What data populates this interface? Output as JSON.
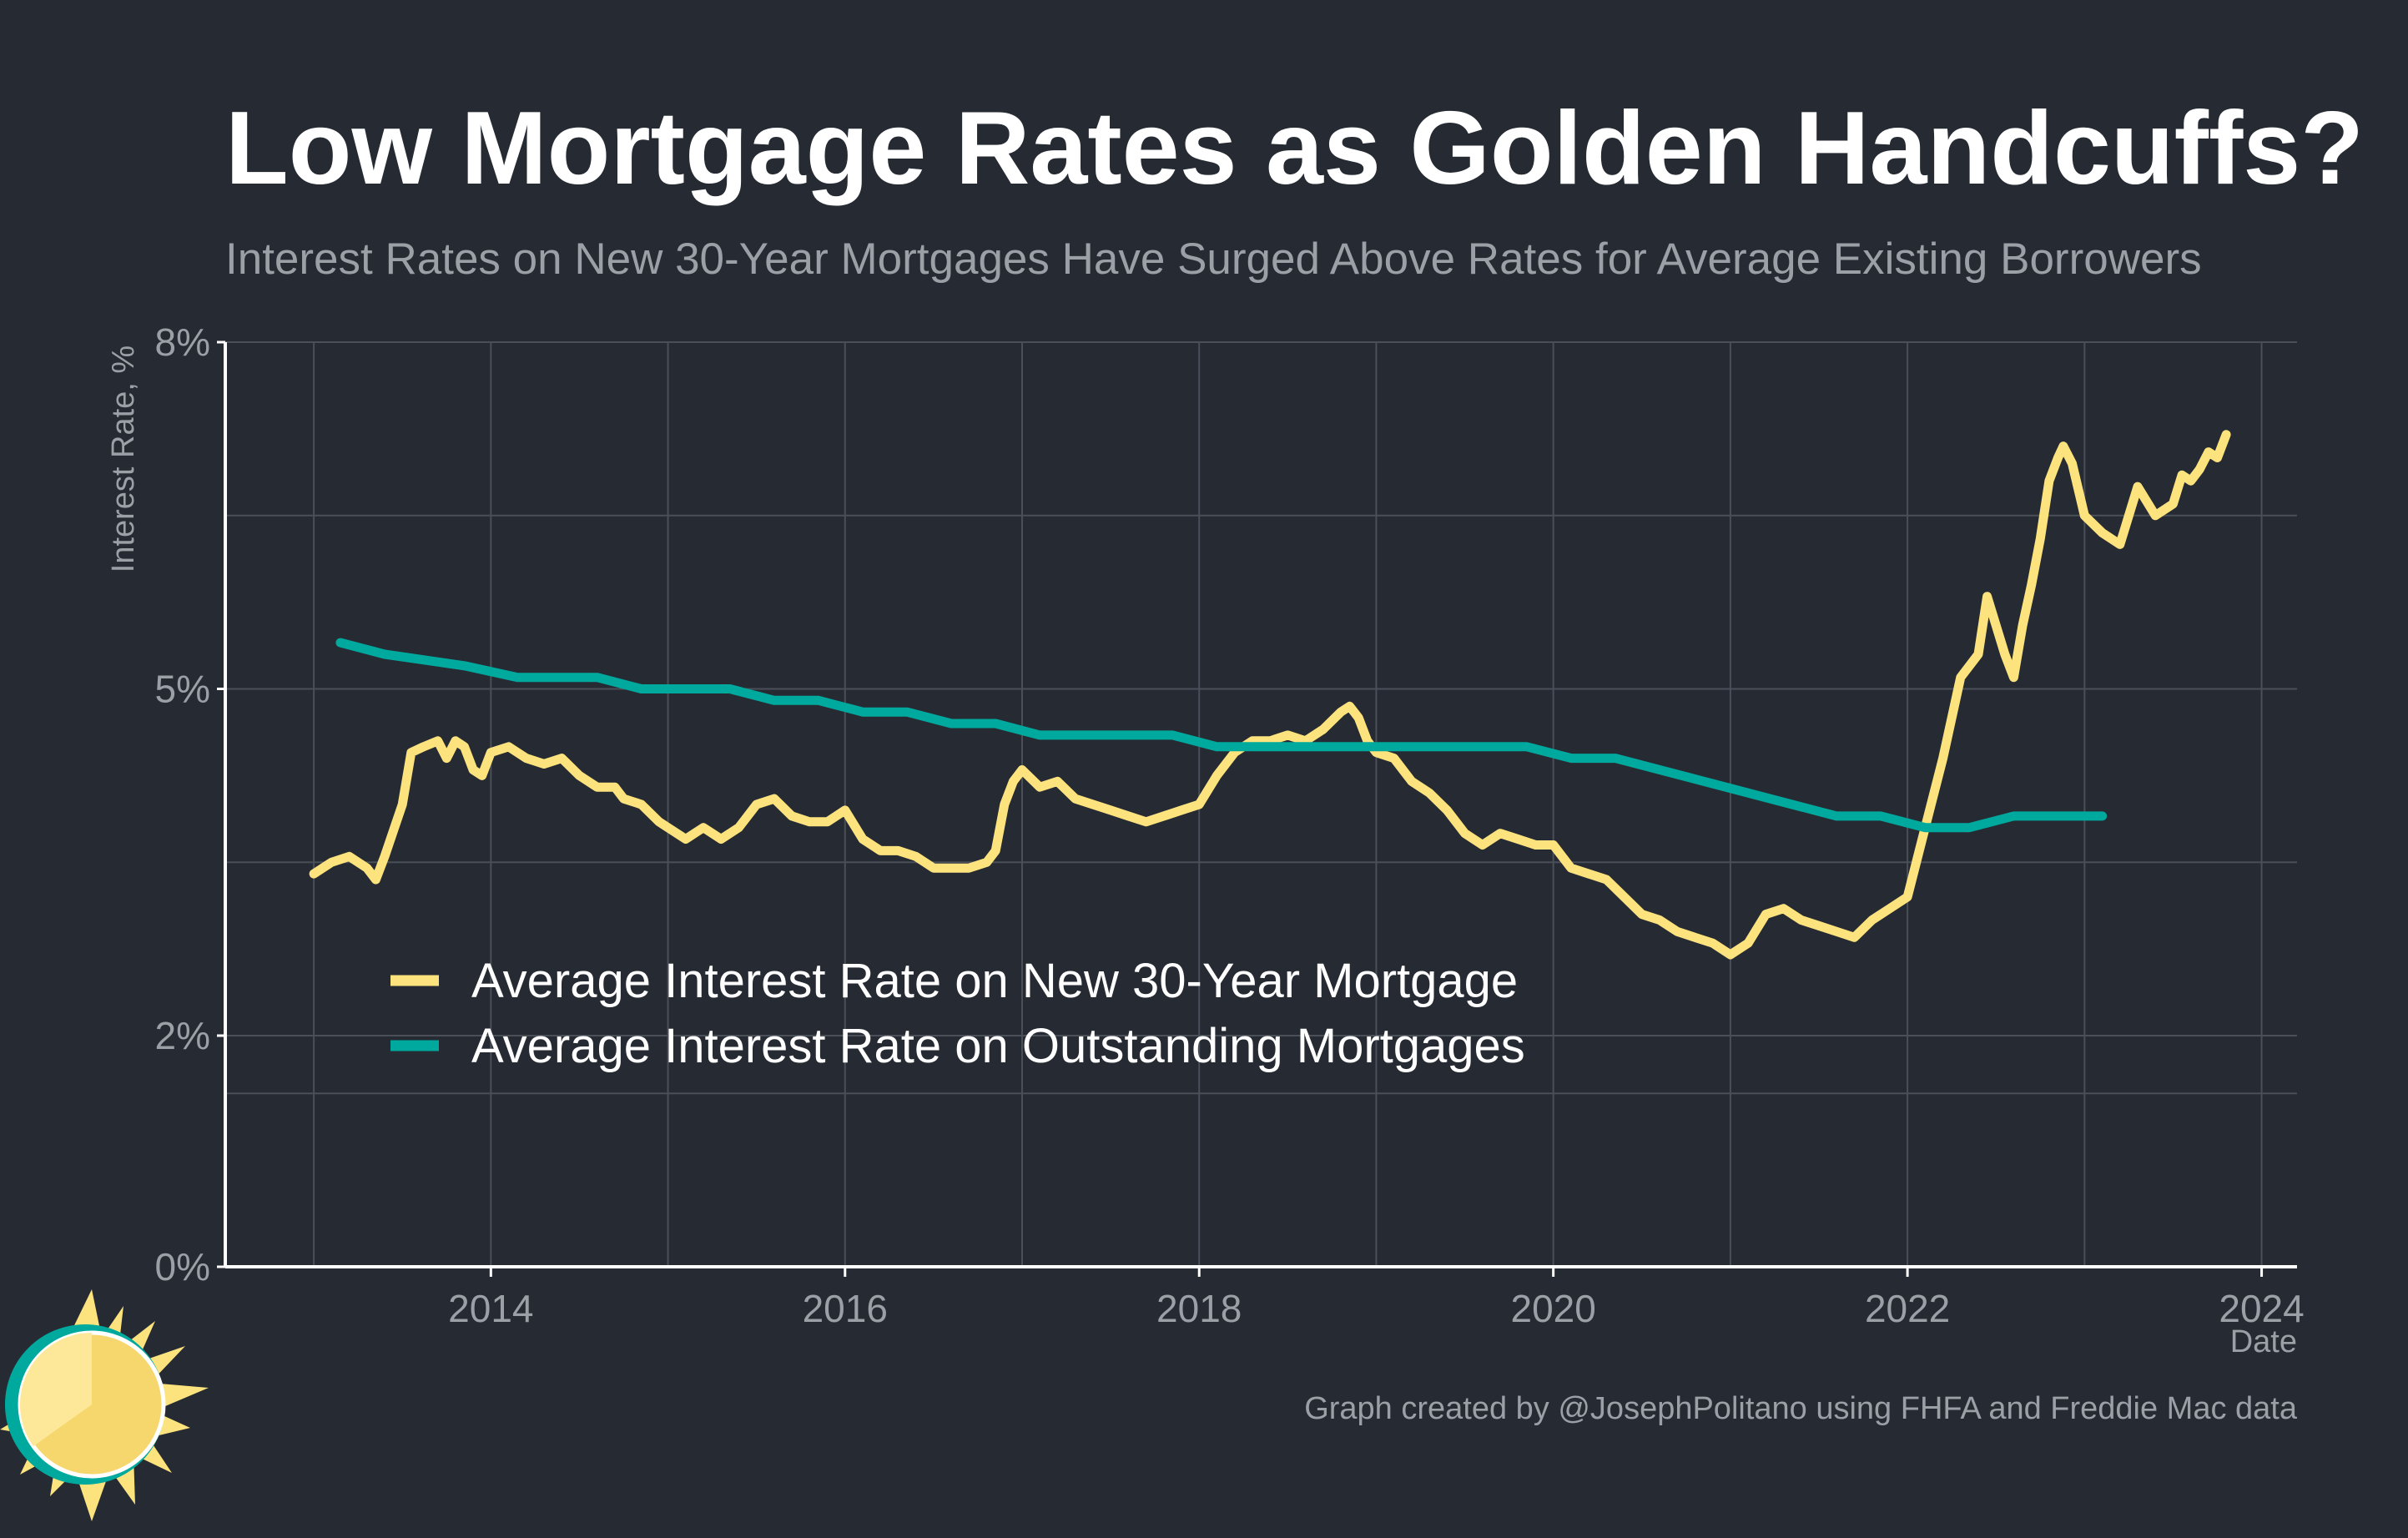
{
  "colors": {
    "background": "#252a33",
    "new_mortgage": "#fce37d",
    "outstanding": "#00a99d",
    "grid": "#4a4f58",
    "axis": "#ffffff",
    "title": "#ffffff",
    "subtitle": "#9aa0a6",
    "tick": "#9aa0a6"
  },
  "chart_data": {
    "type": "line",
    "title": "Low Mortgage Rates as Golden Handcuffs?",
    "subtitle": "Interest Rates on New 30-Year Mortgages Have Surged Above Rates for Average Existing Borrowers",
    "xlabel": "Date",
    "ylabel": "Interest Rate, %",
    "xlim": [
      2012.5,
      2024.2
    ],
    "ylim": [
      0,
      8
    ],
    "x_ticks": [
      2014,
      2016,
      2018,
      2020,
      2022,
      2024
    ],
    "x_tick_labels": [
      "2014",
      "2016",
      "2018",
      "2020",
      "2022",
      "2024"
    ],
    "y_ticks": [
      0,
      2,
      5,
      8
    ],
    "y_tick_labels": [
      "0%",
      "2%",
      "5%",
      "8%"
    ],
    "grid": true,
    "legend_position": "lower-left",
    "series": [
      {
        "name": "Average Interest Rate on New 30-Year Mortgage",
        "color_key": "new_mortgage",
        "points": [
          [
            2013.0,
            3.4
          ],
          [
            2013.1,
            3.5
          ],
          [
            2013.2,
            3.55
          ],
          [
            2013.3,
            3.45
          ],
          [
            2013.35,
            3.35
          ],
          [
            2013.4,
            3.55
          ],
          [
            2013.5,
            4.0
          ],
          [
            2013.55,
            4.45
          ],
          [
            2013.62,
            4.5
          ],
          [
            2013.7,
            4.55
          ],
          [
            2013.75,
            4.4
          ],
          [
            2013.8,
            4.55
          ],
          [
            2013.85,
            4.5
          ],
          [
            2013.9,
            4.3
          ],
          [
            2013.95,
            4.25
          ],
          [
            2014.0,
            4.45
          ],
          [
            2014.1,
            4.5
          ],
          [
            2014.2,
            4.4
          ],
          [
            2014.3,
            4.35
          ],
          [
            2014.4,
            4.4
          ],
          [
            2014.5,
            4.25
          ],
          [
            2014.6,
            4.15
          ],
          [
            2014.7,
            4.15
          ],
          [
            2014.75,
            4.05
          ],
          [
            2014.85,
            4.0
          ],
          [
            2014.95,
            3.85
          ],
          [
            2015.0,
            3.8
          ],
          [
            2015.1,
            3.7
          ],
          [
            2015.2,
            3.8
          ],
          [
            2015.3,
            3.7
          ],
          [
            2015.4,
            3.8
          ],
          [
            2015.5,
            4.0
          ],
          [
            2015.6,
            4.05
          ],
          [
            2015.7,
            3.9
          ],
          [
            2015.8,
            3.85
          ],
          [
            2015.9,
            3.85
          ],
          [
            2016.0,
            3.95
          ],
          [
            2016.1,
            3.7
          ],
          [
            2016.2,
            3.6
          ],
          [
            2016.3,
            3.6
          ],
          [
            2016.4,
            3.55
          ],
          [
            2016.5,
            3.45
          ],
          [
            2016.6,
            3.45
          ],
          [
            2016.7,
            3.45
          ],
          [
            2016.8,
            3.5
          ],
          [
            2016.85,
            3.6
          ],
          [
            2016.9,
            4.0
          ],
          [
            2016.95,
            4.2
          ],
          [
            2017.0,
            4.3
          ],
          [
            2017.1,
            4.15
          ],
          [
            2017.2,
            4.2
          ],
          [
            2017.3,
            4.05
          ],
          [
            2017.4,
            4.0
          ],
          [
            2017.5,
            3.95
          ],
          [
            2017.6,
            3.9
          ],
          [
            2017.7,
            3.85
          ],
          [
            2017.8,
            3.9
          ],
          [
            2017.9,
            3.95
          ],
          [
            2018.0,
            4.0
          ],
          [
            2018.1,
            4.25
          ],
          [
            2018.2,
            4.45
          ],
          [
            2018.3,
            4.55
          ],
          [
            2018.4,
            4.55
          ],
          [
            2018.5,
            4.6
          ],
          [
            2018.6,
            4.55
          ],
          [
            2018.7,
            4.65
          ],
          [
            2018.8,
            4.8
          ],
          [
            2018.85,
            4.85
          ],
          [
            2018.9,
            4.75
          ],
          [
            2018.95,
            4.55
          ],
          [
            2019.0,
            4.45
          ],
          [
            2019.1,
            4.4
          ],
          [
            2019.2,
            4.2
          ],
          [
            2019.3,
            4.1
          ],
          [
            2019.4,
            3.95
          ],
          [
            2019.5,
            3.75
          ],
          [
            2019.6,
            3.65
          ],
          [
            2019.7,
            3.75
          ],
          [
            2019.8,
            3.7
          ],
          [
            2019.9,
            3.65
          ],
          [
            2020.0,
            3.65
          ],
          [
            2020.1,
            3.45
          ],
          [
            2020.2,
            3.4
          ],
          [
            2020.3,
            3.35
          ],
          [
            2020.4,
            3.2
          ],
          [
            2020.5,
            3.05
          ],
          [
            2020.6,
            3.0
          ],
          [
            2020.7,
            2.9
          ],
          [
            2020.8,
            2.85
          ],
          [
            2020.9,
            2.8
          ],
          [
            2021.0,
            2.7
          ],
          [
            2021.1,
            2.8
          ],
          [
            2021.2,
            3.05
          ],
          [
            2021.3,
            3.1
          ],
          [
            2021.4,
            3.0
          ],
          [
            2021.5,
            2.95
          ],
          [
            2021.6,
            2.9
          ],
          [
            2021.7,
            2.85
          ],
          [
            2021.8,
            3.0
          ],
          [
            2021.9,
            3.1
          ],
          [
            2022.0,
            3.2
          ],
          [
            2022.1,
            3.8
          ],
          [
            2022.2,
            4.4
          ],
          [
            2022.3,
            5.1
          ],
          [
            2022.4,
            5.3
          ],
          [
            2022.45,
            5.8
          ],
          [
            2022.5,
            5.55
          ],
          [
            2022.55,
            5.3
          ],
          [
            2022.6,
            5.1
          ],
          [
            2022.65,
            5.55
          ],
          [
            2022.7,
            5.9
          ],
          [
            2022.75,
            6.3
          ],
          [
            2022.8,
            6.8
          ],
          [
            2022.85,
            7.0
          ],
          [
            2022.88,
            7.1
          ],
          [
            2022.93,
            6.95
          ],
          [
            2023.0,
            6.5
          ],
          [
            2023.1,
            6.35
          ],
          [
            2023.2,
            6.25
          ],
          [
            2023.3,
            6.75
          ],
          [
            2023.4,
            6.5
          ],
          [
            2023.5,
            6.6
          ],
          [
            2023.55,
            6.85
          ],
          [
            2023.6,
            6.8
          ],
          [
            2023.65,
            6.9
          ],
          [
            2023.7,
            7.05
          ],
          [
            2023.75,
            7.0
          ],
          [
            2023.8,
            7.2
          ]
        ]
      },
      {
        "name": "Average Interest Rate on Outstanding Mortgages",
        "color_key": "outstanding",
        "points": [
          [
            2013.15,
            5.4
          ],
          [
            2013.4,
            5.3
          ],
          [
            2013.85,
            5.2
          ],
          [
            2014.15,
            5.1
          ],
          [
            2014.6,
            5.1
          ],
          [
            2014.85,
            5.0
          ],
          [
            2015.35,
            5.0
          ],
          [
            2015.6,
            4.9
          ],
          [
            2015.85,
            4.9
          ],
          [
            2016.1,
            4.8
          ],
          [
            2016.35,
            4.8
          ],
          [
            2016.6,
            4.7
          ],
          [
            2016.85,
            4.7
          ],
          [
            2017.1,
            4.6
          ],
          [
            2017.85,
            4.6
          ],
          [
            2018.1,
            4.5
          ],
          [
            2018.35,
            4.5
          ],
          [
            2018.6,
            4.5
          ],
          [
            2018.85,
            4.5
          ],
          [
            2019.85,
            4.5
          ],
          [
            2020.1,
            4.4
          ],
          [
            2020.35,
            4.4
          ],
          [
            2021.6,
            3.9
          ],
          [
            2021.85,
            3.9
          ],
          [
            2022.1,
            3.8
          ],
          [
            2022.35,
            3.8
          ],
          [
            2022.6,
            3.9
          ],
          [
            2023.1,
            3.9
          ]
        ]
      }
    ]
  },
  "credit": "Graph created by @JosephPolitano using FHFA and Freddie Mac data",
  "logo_icon": "sun-logo-icon"
}
